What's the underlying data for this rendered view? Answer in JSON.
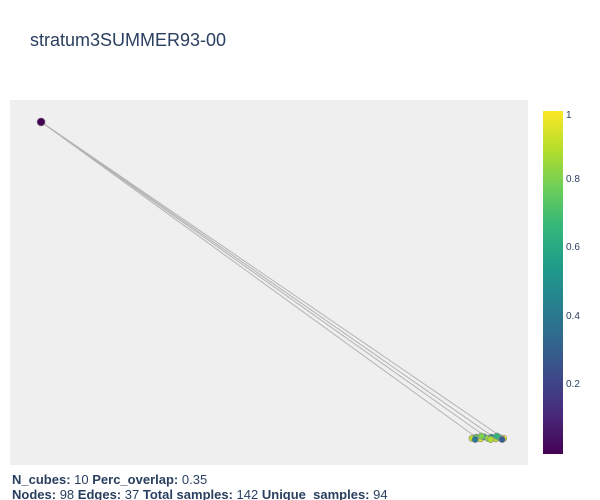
{
  "title": "stratum3SUMMER93-00",
  "colors": {
    "background": "#ffffff",
    "plot_bg": "#efefef",
    "edge": "#b3b3b3",
    "text": "#2a3f5f",
    "colorscale": [
      "#440154",
      "#482878",
      "#3e4989",
      "#31688e",
      "#26828e",
      "#1f9e89",
      "#35b779",
      "#6ece58",
      "#b5de2b",
      "#fde725"
    ]
  },
  "chart_data": {
    "type": "scatter",
    "title": "stratum3SUMMER93-00",
    "xlabel": "",
    "ylabel": "",
    "grid": false,
    "colorscale": "Viridis",
    "colorbar": {
      "range": [
        0,
        1
      ],
      "ticks": [
        "1",
        "0.8",
        "0.6",
        "0.4",
        "0.2"
      ],
      "tick_values": [
        1,
        0.8,
        0.6,
        0.4,
        0.2
      ]
    },
    "xlim": [
      0,
      100
    ],
    "ylim": [
      0,
      100
    ],
    "nodes": [
      {
        "x": 6,
        "y": 94,
        "value": 0.0
      },
      {
        "x": 89.2,
        "y": 7.3,
        "value": 0.9
      },
      {
        "x": 90.0,
        "y": 7.6,
        "value": 0.75
      },
      {
        "x": 90.8,
        "y": 7.2,
        "value": 0.95
      },
      {
        "x": 91.5,
        "y": 7.7,
        "value": 0.6
      },
      {
        "x": 92.3,
        "y": 7.3,
        "value": 0.85
      },
      {
        "x": 93.0,
        "y": 7.6,
        "value": 0.5
      },
      {
        "x": 93.8,
        "y": 7.2,
        "value": 0.92
      },
      {
        "x": 94.5,
        "y": 7.5,
        "value": 0.7
      },
      {
        "x": 95.3,
        "y": 7.3,
        "value": 0.98
      },
      {
        "x": 89.8,
        "y": 7.0,
        "value": 0.4
      },
      {
        "x": 91.0,
        "y": 7.9,
        "value": 0.8
      },
      {
        "x": 92.8,
        "y": 7.0,
        "value": 0.88
      },
      {
        "x": 94.0,
        "y": 7.9,
        "value": 0.65
      },
      {
        "x": 95.0,
        "y": 7.0,
        "value": 0.3
      }
    ],
    "edges": [
      [
        0,
        2
      ],
      [
        0,
        5
      ],
      [
        0,
        7
      ],
      [
        0,
        9
      ],
      [
        1,
        2
      ],
      [
        2,
        3
      ],
      [
        3,
        4
      ],
      [
        4,
        5
      ],
      [
        5,
        6
      ],
      [
        6,
        7
      ],
      [
        7,
        8
      ],
      [
        8,
        9
      ],
      [
        1,
        10
      ],
      [
        3,
        11
      ],
      [
        5,
        12
      ],
      [
        7,
        13
      ],
      [
        9,
        14
      ]
    ]
  },
  "footer": {
    "n_cubes_label": "N_cubes:",
    "n_cubes_value": "10",
    "perc_overlap_label": "Perc_overlap:",
    "perc_overlap_value": "0.35",
    "nodes_label": "Nodes:",
    "nodes_value": "98",
    "edges_label": "Edges:",
    "edges_value": "37",
    "total_samples_label": "Total samples:",
    "total_samples_value": "142",
    "unique_samples_label": "Unique_samples:",
    "unique_samples_value": "94"
  }
}
